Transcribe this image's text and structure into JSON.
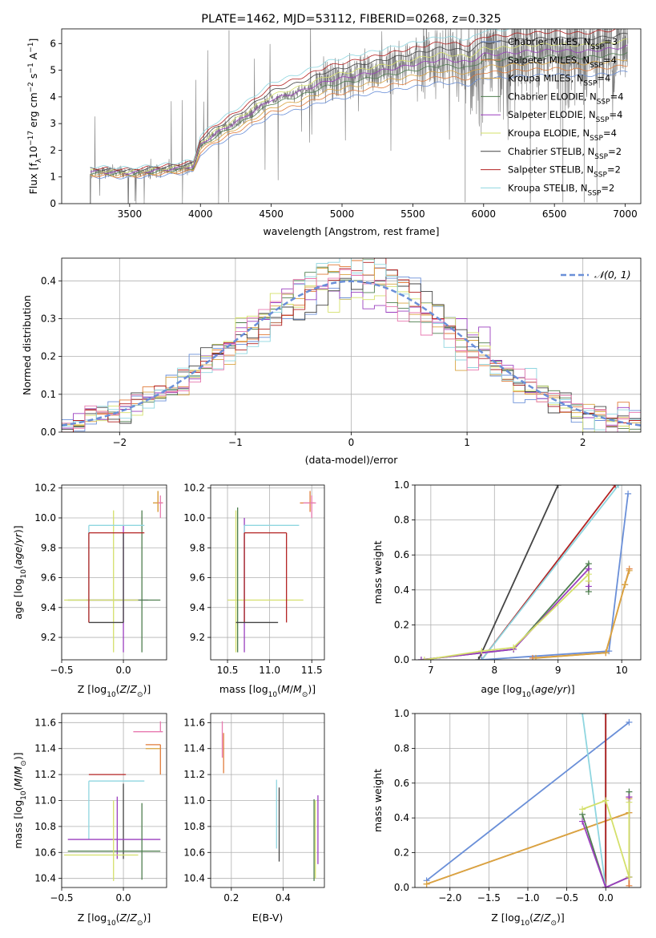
{
  "colors": {
    "Chabrier MILES": "#6a8fd8",
    "Salpeter MILES": "#e07b39",
    "Kroupa MILES": "#d9a441",
    "Chabrier ELODIE": "#4f7f4f",
    "Salpeter ELODIE": "#9b3fbf",
    "Kroupa ELODIE": "#d4e06a",
    "Chabrier STELIB": "#444444",
    "Salpeter STELIB": "#b32222",
    "Kroupa STELIB": "#8fd6e0",
    "normal": "#6a8fd8",
    "extra_pink": "#e87ab0"
  },
  "chart_data": [
    {
      "id": "spectrum",
      "type": "line",
      "title": "PLATE=1462, MJD=53112, FIBERID=0268, z=0.325",
      "xlabel": "wavelength [Angstrom, rest frame]",
      "ylabel": "Flux [f_λ 10^-17 erg cm^-2 s^-1 A^-1]",
      "xlim": [
        3020,
        7110
      ],
      "ylim": [
        0,
        6.55
      ],
      "xticks": [
        3500,
        4000,
        4500,
        5000,
        5500,
        6000,
        6500,
        7000
      ],
      "yticks": [
        0,
        1,
        2,
        3,
        4,
        5,
        6
      ],
      "legend": "top-right",
      "legend_entries": [
        "Chabrier MILES, N_SSP=3",
        "Salpeter MILES, N_SSP=4",
        "Kroupa MILES, N_SSP=4",
        "Chabrier ELODIE, N_SSP=4",
        "Salpeter ELODIE, N_SSP=4",
        "Kroupa ELODIE, N_SSP=4",
        "Chabrier STELIB, N_SSP=2",
        "Salpeter STELIB, N_SSP=2",
        "Kroupa STELIB, N_SSP=2"
      ],
      "legend_names": [
        "Chabrier MILES",
        "Salpeter MILES",
        "Kroupa MILES",
        "Chabrier ELODIE",
        "Salpeter ELODIE",
        "Kroupa ELODIE",
        "Chabrier STELIB",
        "Salpeter STELIB",
        "Kroupa STELIB"
      ],
      "continuum_x": [
        3220,
        3500,
        3600,
        3800,
        3950,
        4000,
        4100,
        4300,
        4500,
        4700,
        4900,
        5100,
        5300,
        5500,
        5700,
        5900,
        6000,
        6100,
        6300,
        6500,
        6700,
        6900,
        7020
      ],
      "continuum_y": [
        1.2,
        1.15,
        1.2,
        1.3,
        1.4,
        2.2,
        2.6,
        3.2,
        3.9,
        4.2,
        4.6,
        4.8,
        5.0,
        5.2,
        5.4,
        5.3,
        5.6,
        5.6,
        5.7,
        5.75,
        5.7,
        5.8,
        5.9
      ]
    },
    {
      "id": "residuals",
      "type": "line",
      "xlabel": "(data-model)/error",
      "ylabel": "Normed distribution",
      "xlim": [
        -2.5,
        2.5
      ],
      "ylim": [
        0,
        0.46
      ],
      "xticks": [
        -2,
        -1,
        0,
        1,
        2
      ],
      "xticklabels": [
        "−2",
        "−1",
        "0",
        "1",
        "2"
      ],
      "yticks": [
        0,
        0.1,
        0.2,
        0.3,
        0.4
      ],
      "yticklabels": [
        "0.0",
        "0.1",
        "0.2",
        "0.3",
        "0.4"
      ],
      "legend": "top-right",
      "legend_label": "𝒩(0, 1)"
    },
    {
      "id": "age-vs-Z",
      "type": "scatter",
      "xlabel": "Z [log10(Z/Z⊙)]",
      "ylabel": "age [log10(age/yr)]",
      "xlim": [
        -0.5,
        0.35
      ],
      "ylim": [
        9.05,
        10.22
      ],
      "xticks": [
        -0.5,
        0.0
      ],
      "xticklabels": [
        "−0.5",
        "0.0"
      ],
      "yticks": [
        9.2,
        9.4,
        9.6,
        9.8,
        10.0,
        10.2
      ],
      "yticklabels": [
        "9.2",
        "9.4",
        "9.6",
        "9.8",
        "10.0",
        "10.2"
      ]
    },
    {
      "id": "age-vs-mass",
      "type": "scatter",
      "xlabel": "mass [log10(M/M⊙)]",
      "xlim": [
        10.3,
        11.65
      ],
      "ylim": [
        9.05,
        10.22
      ],
      "xticks": [
        10.5,
        11.0,
        11.5
      ],
      "xticklabels": [
        "10.5",
        "11.0",
        "11.5"
      ],
      "yticks": [
        9.2,
        9.4,
        9.6,
        9.8,
        10.0,
        10.2
      ],
      "yticklabels": [
        "9.2",
        "9.4",
        "9.6",
        "9.8",
        "10.0",
        "10.2"
      ]
    },
    {
      "id": "massweight-vs-age",
      "type": "line",
      "xlabel": "age [log10(age/yr)]",
      "ylabel": "mass weight",
      "xlim": [
        6.75,
        10.3
      ],
      "ylim": [
        0,
        1.0
      ],
      "xticks": [
        7,
        8,
        9,
        10
      ],
      "xticklabels": [
        "7",
        "8",
        "9",
        "10"
      ],
      "yticks": [
        0,
        0.2,
        0.4,
        0.6,
        0.8,
        1.0
      ],
      "yticklabels": [
        "0.0",
        "0.2",
        "0.4",
        "0.6",
        "0.8",
        "1.0"
      ],
      "series": [
        {
          "name": "Chabrier STELIB",
          "x": [
            7.75,
            9.0
          ],
          "y": [
            0.0,
            1.0
          ]
        },
        {
          "name": "Salpeter STELIB",
          "x": [
            7.8,
            9.9
          ],
          "y": [
            0.0,
            1.0
          ]
        },
        {
          "name": "Kroupa STELIB",
          "x": [
            7.8,
            9.95
          ],
          "y": [
            0.0,
            1.0
          ]
        },
        {
          "name": "Chabrier MILES",
          "x": [
            7.8,
            9.8,
            10.1
          ],
          "y": [
            0.0,
            0.05,
            0.95
          ]
        },
        {
          "name": "Salpeter MILES",
          "x": [
            8.6,
            9.75,
            10.05,
            10.12
          ],
          "y": [
            0.01,
            0.04,
            0.43,
            0.52
          ]
        },
        {
          "name": "Kroupa MILES",
          "x": [
            8.65,
            9.75,
            10.05,
            10.12
          ],
          "y": [
            0.01,
            0.04,
            0.43,
            0.51
          ]
        },
        {
          "name": "Chabrier ELODIE",
          "x": [
            6.85,
            7.8,
            8.3,
            9.48,
            9.48
          ],
          "y": [
            0.0,
            0.04,
            0.06,
            0.55,
            0.39
          ]
        },
        {
          "name": "Salpeter ELODIE",
          "x": [
            6.85,
            7.8,
            8.3,
            9.48,
            9.48
          ],
          "y": [
            0.0,
            0.04,
            0.06,
            0.52,
            0.42
          ]
        },
        {
          "name": "Kroupa ELODIE",
          "x": [
            6.9,
            7.8,
            8.3,
            9.48,
            9.48
          ],
          "y": [
            0.0,
            0.05,
            0.07,
            0.49,
            0.45
          ]
        }
      ]
    },
    {
      "id": "mass-vs-Z",
      "type": "scatter",
      "xlabel": "Z [log10(Z/Z⊙)]",
      "ylabel": "mass [log10(M/M⊙)]",
      "xlim": [
        -0.5,
        0.35
      ],
      "ylim": [
        10.33,
        11.67
      ],
      "xticks": [
        -0.5,
        0.0
      ],
      "xticklabels": [
        "−0.5",
        "0.0"
      ],
      "yticks": [
        10.4,
        10.6,
        10.8,
        11.0,
        11.2,
        11.4,
        11.6
      ],
      "yticklabels": [
        "10.4",
        "10.6",
        "10.8",
        "11.0",
        "11.2",
        "11.4",
        "11.6"
      ]
    },
    {
      "id": "mass-vs-EBV",
      "type": "scatter",
      "xlabel": "E(B-V)",
      "xlim": [
        0.12,
        0.56
      ],
      "ylim": [
        10.33,
        11.67
      ],
      "xticks": [
        0.2,
        0.4
      ],
      "xticklabels": [
        "0.2",
        "0.4"
      ],
      "yticks": [
        10.4,
        10.6,
        10.8,
        11.0,
        11.2,
        11.4,
        11.6
      ],
      "yticklabels": [
        "10.4",
        "10.6",
        "10.8",
        "11.0",
        "11.2",
        "11.4",
        "11.6"
      ]
    },
    {
      "id": "massweight-vs-Z",
      "type": "line",
      "xlabel": "Z [log10(Z/Z⊙)]",
      "ylabel": "mass weight",
      "xlim": [
        -2.45,
        0.45
      ],
      "ylim": [
        0,
        1.0
      ],
      "xticks": [
        -2.0,
        -1.5,
        -1.0,
        -0.5,
        0.0
      ],
      "xticklabels": [
        "−2.0",
        "−1.5",
        "−1.0",
        "−0.5",
        "0.0"
      ],
      "yticks": [
        0,
        0.2,
        0.4,
        0.6,
        0.8,
        1.0
      ],
      "yticklabels": [
        "0.0",
        "0.2",
        "0.4",
        "0.6",
        "0.8",
        "1.0"
      ],
      "series": [
        {
          "name": "Chabrier MILES",
          "x": [
            -2.3,
            0.3
          ],
          "y": [
            0.04,
            0.95
          ]
        },
        {
          "name": "Salpeter MILES",
          "x": [
            -2.3,
            0.3,
            0.3,
            0.3
          ],
          "y": [
            0.02,
            0.43,
            0.52,
            0.01
          ]
        },
        {
          "name": "Kroupa MILES",
          "x": [
            -2.3,
            0.3,
            0.3
          ],
          "y": [
            0.02,
            0.43,
            0.51
          ]
        },
        {
          "name": "Chabrier STELIB",
          "x": [
            0.0,
            0.0
          ],
          "y": [
            1.0,
            0.0
          ]
        },
        {
          "name": "Salpeter STELIB",
          "x": [
            0.0,
            0.0
          ],
          "y": [
            1.0,
            0.0
          ]
        },
        {
          "name": "Kroupa STELIB",
          "x": [
            -0.3,
            0.0
          ],
          "y": [
            1.0,
            0.0
          ]
        },
        {
          "name": "Chabrier ELODIE",
          "x": [
            -0.3,
            0.0,
            0.3,
            0.3
          ],
          "y": [
            0.42,
            0.0,
            0.06,
            0.55
          ]
        },
        {
          "name": "Salpeter ELODIE",
          "x": [
            -0.3,
            0.0,
            0.3,
            0.3
          ],
          "y": [
            0.38,
            0.0,
            0.06,
            0.52
          ]
        },
        {
          "name": "Kroupa ELODIE",
          "x": [
            -0.3,
            0.0,
            0.3,
            0.3
          ],
          "y": [
            0.45,
            0.5,
            0.06,
            0.49
          ]
        }
      ]
    }
  ]
}
